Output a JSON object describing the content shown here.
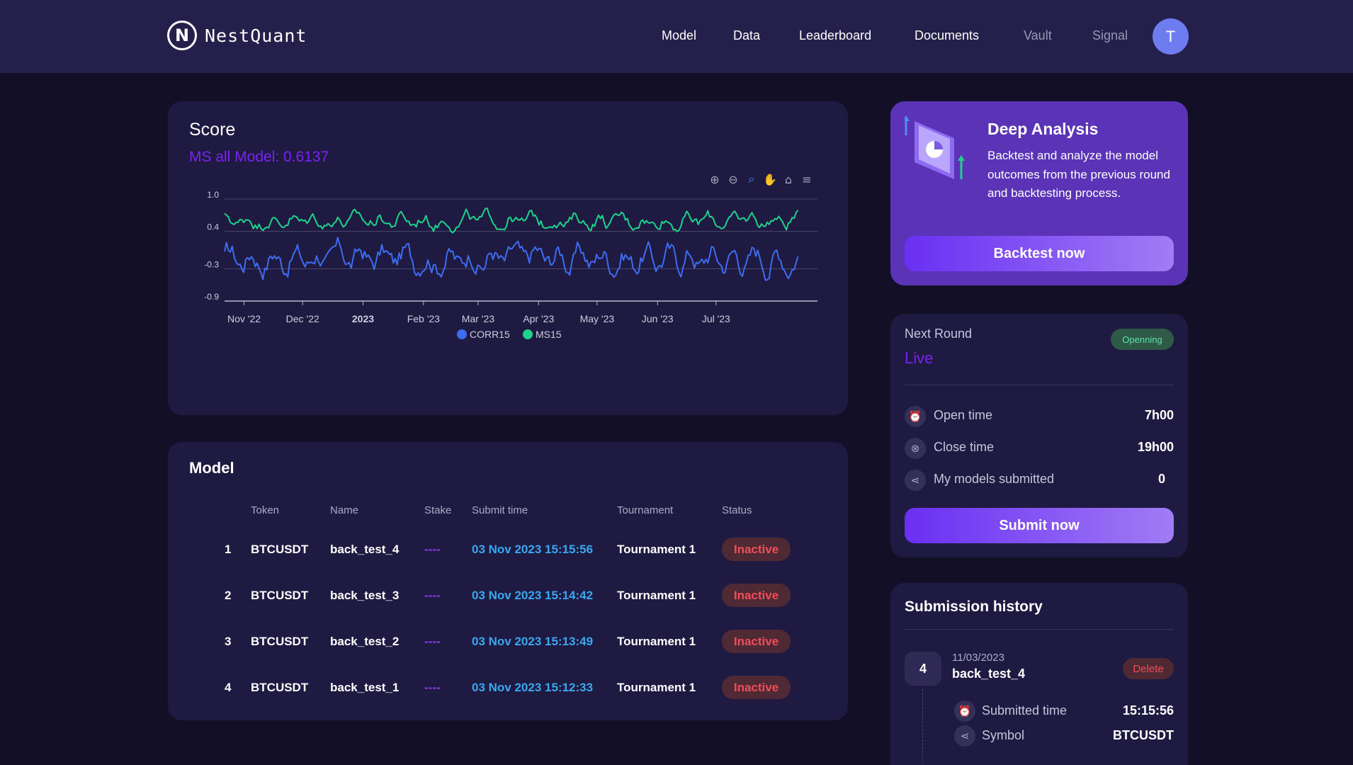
{
  "brand": {
    "name": "NestQuant",
    "logo_letter": "N"
  },
  "nav": {
    "items": [
      {
        "label": "Model"
      },
      {
        "label": "Data"
      },
      {
        "label": "Leaderboard"
      },
      {
        "label": "Documents"
      },
      {
        "label": "Vault"
      },
      {
        "label": "Signal"
      }
    ],
    "avatar_letter": "T"
  },
  "score": {
    "title": "Score",
    "subtitle": "MS all Model: 0.6137",
    "tools": [
      "zoom-in-icon",
      "zoom-out-icon",
      "zoom-select-icon",
      "pan-icon",
      "home-icon",
      "menu-icon"
    ]
  },
  "chart_data": {
    "type": "line",
    "title": "Score",
    "xlabel": "",
    "ylabel": "",
    "yticks": [
      "1.0",
      "0.4",
      "-0.3",
      "-0.9"
    ],
    "ylim": [
      -0.9,
      1.0
    ],
    "xticks": [
      "Nov '22",
      "Dec '22",
      "2023",
      "Feb '23",
      "Mar '23",
      "Apr '23",
      "May '23",
      "Jun '23",
      "Jul '23"
    ],
    "xlim": [
      "2022-10-22",
      "2023-08-22"
    ],
    "x_range": [
      "2022-10-22",
      "2023-08-12"
    ],
    "grid": true,
    "legend_position": "bottom",
    "series": [
      {
        "name": "CORR15",
        "color": "#3d6cf0",
        "mean": -0.1,
        "amplitude": 0.35
      },
      {
        "name": "MS15",
        "color": "#1fd18a",
        "mean": 0.6,
        "amplitude": 0.2
      }
    ]
  },
  "model": {
    "title": "Model",
    "columns": [
      "Token",
      "Name",
      "Stake",
      "Submit time",
      "Tournament",
      "Status"
    ],
    "rows": [
      {
        "index": "1",
        "token": "BTCUSDT",
        "name": "back_test_4",
        "stake": "----",
        "time": "03 Nov 2023 15:15:56",
        "tournament": "Tournament 1",
        "status": "Inactive"
      },
      {
        "index": "2",
        "token": "BTCUSDT",
        "name": "back_test_3",
        "stake": "----",
        "time": "03 Nov 2023 15:14:42",
        "tournament": "Tournament 1",
        "status": "Inactive"
      },
      {
        "index": "3",
        "token": "BTCUSDT",
        "name": "back_test_2",
        "stake": "----",
        "time": "03 Nov 2023 15:13:49",
        "tournament": "Tournament 1",
        "status": "Inactive"
      },
      {
        "index": "4",
        "token": "BTCUSDT",
        "name": "back_test_1",
        "stake": "----",
        "time": "03 Nov 2023 15:12:33",
        "tournament": "Tournament 1",
        "status": "Inactive"
      }
    ]
  },
  "deep_analysis": {
    "title": "Deep Analysis",
    "text": "Backtest and analyze the model outcomes from the previous round and backtesting process.",
    "button": "Backtest now"
  },
  "next_round": {
    "label": "Next Round",
    "status": "Live",
    "badge": "Openning",
    "open_time_label": "Open time",
    "open_time": "7h00",
    "close_time_label": "Close time",
    "close_time": "19h00",
    "submitted_label": "My models submitted",
    "submitted": "0",
    "button": "Submit now"
  },
  "history": {
    "title": "Submission history",
    "entry": {
      "num": "4",
      "date": "11/03/2023",
      "name": "back_test_4",
      "delete": "Delete",
      "submitted_label": "Submitted time",
      "submitted": "15:15:56",
      "symbol_label": "Symbol",
      "symbol": "BTCUSDT"
    }
  }
}
